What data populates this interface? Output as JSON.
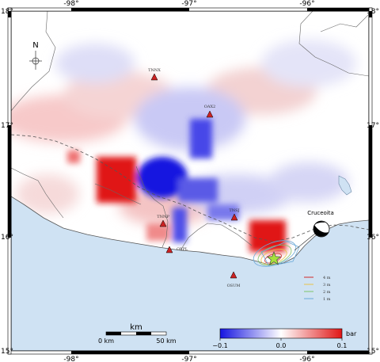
{
  "axes": {
    "top": [
      "-98°",
      "-97°",
      "-96°"
    ],
    "bottom": [
      "-98°",
      "-97°",
      "-96°"
    ],
    "left": [
      "18°",
      "17°",
      "16°",
      "15°"
    ],
    "right": [
      "18°",
      "17°",
      "16°",
      "15°"
    ]
  },
  "north_arrow": {
    "label": "N",
    "icon": "north-arrow-icon"
  },
  "stations": [
    {
      "code": "TNNX",
      "marker_color": "#cc2222"
    },
    {
      "code": "OAX2",
      "marker_color": "#cc2222"
    },
    {
      "code": "TNNP",
      "marker_color": "#cc2222"
    },
    {
      "code": "TNSJ",
      "marker_color": "#cc2222"
    },
    {
      "code": "OXPL",
      "marker_color": "#cc2222"
    },
    {
      "code": "OSUM",
      "marker_color": "#cc2222"
    }
  ],
  "epicenter": {
    "icon": "star-icon",
    "color": "#a6e03c"
  },
  "focal_mechanism": {
    "label": "Cruceoita",
    "icon": "beachball-icon"
  },
  "tsunami_legend": [
    {
      "label": "4 m",
      "color": "#d12a2a"
    },
    {
      "label": "3 m",
      "color": "#e8c24a"
    },
    {
      "label": "2 m",
      "color": "#7fc46a"
    },
    {
      "label": "1 m",
      "color": "#6aa9d8"
    }
  ],
  "scale_bar": {
    "title": "km",
    "left_label": "0 km",
    "right_label": "50 km"
  },
  "colorbar": {
    "unit": "bar",
    "tick_labels": [
      "−0.1",
      "0.0",
      "0.1"
    ],
    "colors": [
      "#1515e0",
      "#ffffff",
      "#e01515"
    ]
  },
  "colors": {
    "ocean": "#cfe2f3",
    "positive": "#e01515",
    "negative": "#1515e0",
    "coast": "#555555"
  }
}
